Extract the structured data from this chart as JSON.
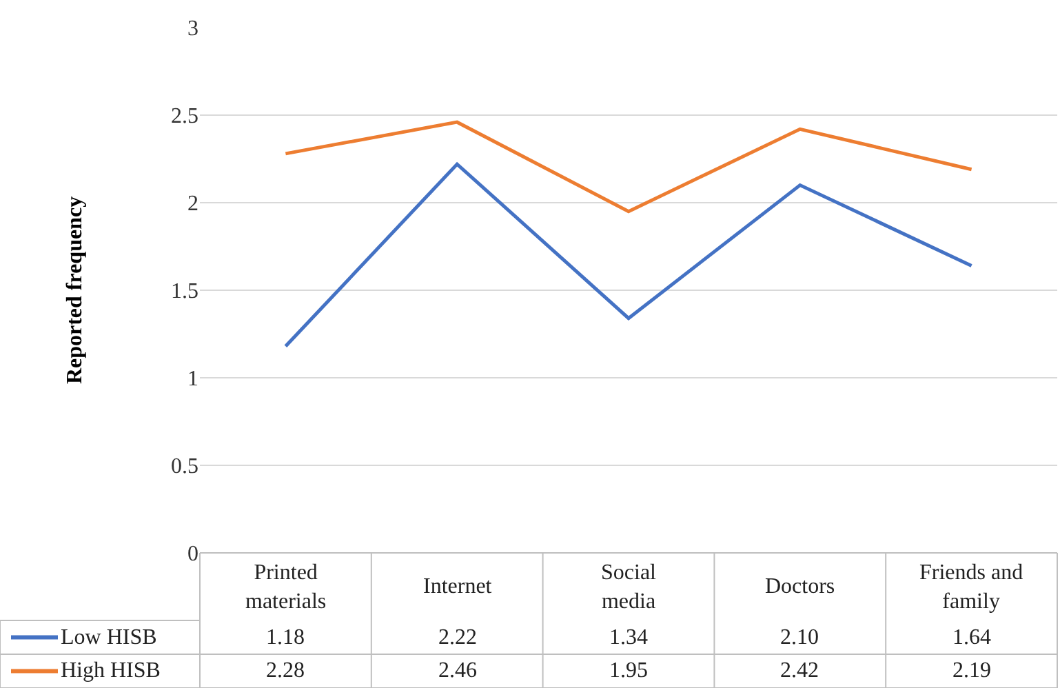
{
  "chart_data": {
    "type": "line",
    "ylabel": "Reported frequency",
    "categories": [
      "Printed materials",
      "Internet",
      "Social media",
      "Doctors",
      "Friends and family"
    ],
    "series": [
      {
        "name": "Low HISB",
        "color": "#4472c4",
        "values": [
          1.18,
          2.22,
          1.34,
          2.1,
          1.64
        ],
        "value_labels": [
          "1.18",
          "2.22",
          "1.34",
          "2.10",
          "1.64"
        ]
      },
      {
        "name": "High HISB",
        "color": "#ed7d31",
        "values": [
          2.28,
          2.46,
          1.95,
          2.42,
          2.19
        ],
        "value_labels": [
          "2.28",
          "2.46",
          "1.95",
          "2.42",
          "2.19"
        ]
      }
    ],
    "ylim": [
      0,
      3
    ],
    "yticks": [
      0,
      0.5,
      1,
      1.5,
      2,
      2.5,
      3
    ],
    "grid": "y",
    "legend": "bottom",
    "marker": "none",
    "line_style": "solid"
  }
}
